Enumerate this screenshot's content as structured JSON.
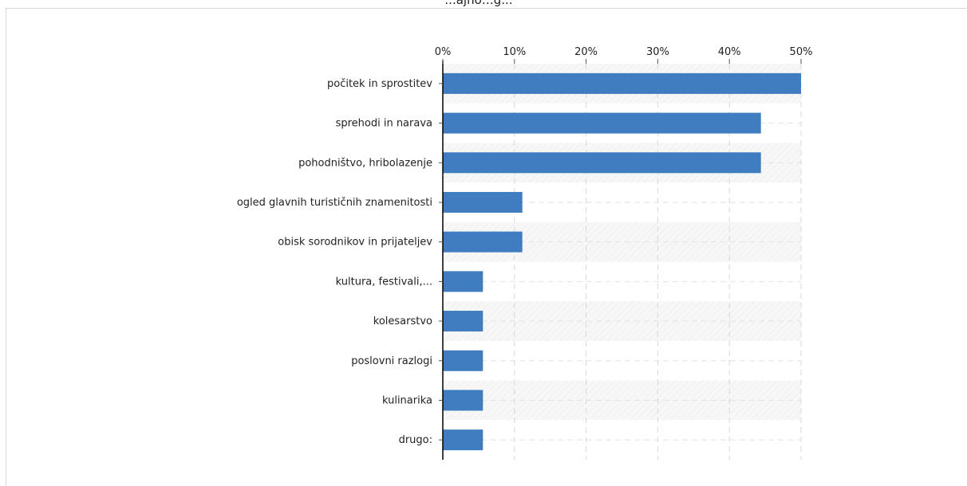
{
  "chart_data": {
    "type": "bar",
    "orientation": "horizontal",
    "title": "...ajno…g...",
    "categories": [
      "počitek in sprostitev",
      "sprehodi in narava",
      "pohodništvo, hribolazenje",
      "ogled glavnih turističnih znamenitosti",
      "obisk sorodnikov in prijateljev",
      "kultura, festivali,...",
      "kolesarstvo",
      "poslovni razlogi",
      "kulinarika",
      "drugo:"
    ],
    "values": [
      50,
      44.4,
      44.4,
      11.1,
      11.1,
      5.6,
      5.6,
      5.6,
      5.6,
      5.6
    ],
    "xlim": [
      0,
      50
    ],
    "ticks": [
      "0%",
      "10%",
      "20%",
      "30%",
      "40%",
      "50%"
    ],
    "tick_values": [
      0,
      10,
      20,
      30,
      40,
      50
    ],
    "grid": true,
    "bar_color": "#3f7cc0"
  }
}
